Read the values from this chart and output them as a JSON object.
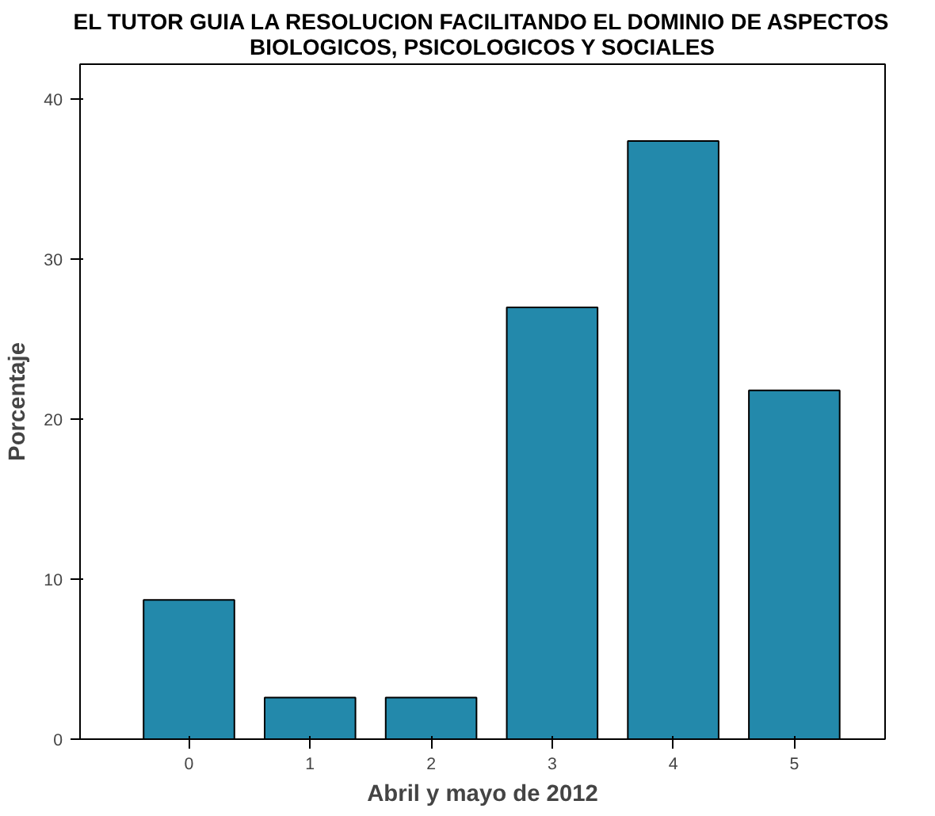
{
  "chart_data": {
    "type": "bar",
    "title": "EL TUTOR GUIA LA RESOLUCION FACILITANDO EL DOMINIO DE ASPECTOS\nBIOLOGICOS, PSICOLOGICOS Y SOCIALES",
    "xlabel": "Abril y mayo de 2012",
    "ylabel": "Porcentaje",
    "categories": [
      "0",
      "1",
      "2",
      "3",
      "4",
      "5"
    ],
    "values": [
      8.7,
      2.6,
      2.6,
      27.0,
      37.4,
      21.8
    ],
    "color": "#2389ab",
    "ylim": [
      0,
      42.2
    ],
    "yticks": [
      0,
      10,
      20,
      30,
      40
    ],
    "grid": false
  }
}
